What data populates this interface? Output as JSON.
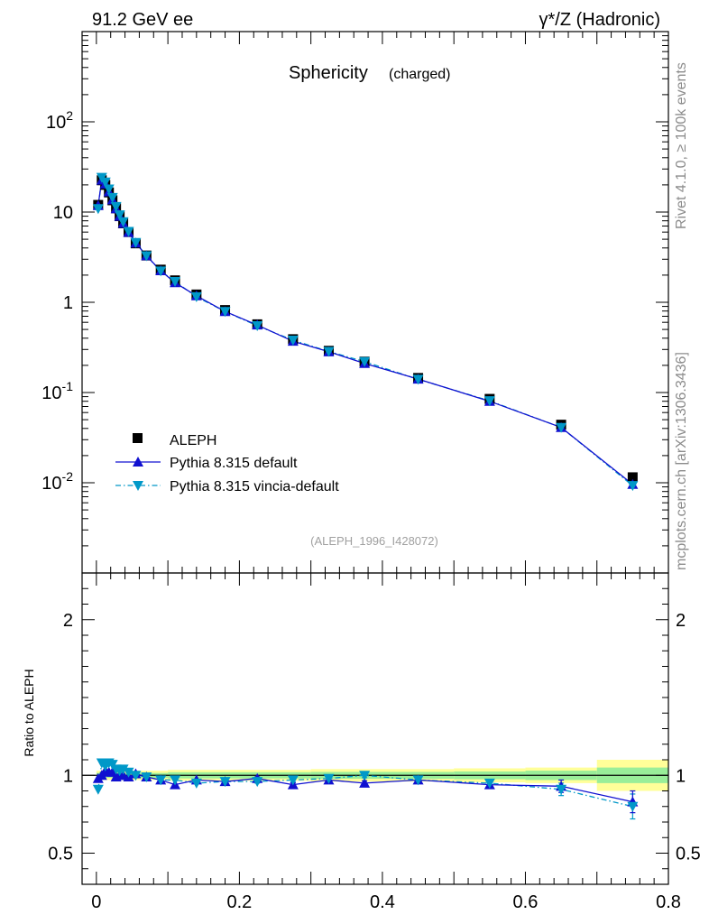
{
  "header": {
    "left": "91.2 GeV ee",
    "right": "γ*/Z (Hadronic)",
    "side_rivet": "Rivet 4.1.0, ≥ 100k events",
    "side_mcplots": "mcplots.cern.ch [arXiv:1306.3436]"
  },
  "colors": {
    "aleph": "#000000",
    "pythia_default": "#1010d0",
    "pythia_vincia": "#0098c8",
    "band_outer": "#ffff99",
    "band_inner": "#99ee99"
  },
  "chart_data": [
    {
      "type": "scatter",
      "title": "Sphericity",
      "subtitle": "(charged)",
      "reference_label": "(ALEPH_1996_I428072)",
      "xlabel": "",
      "ylabel": "",
      "yscale": "log",
      "xlim": [
        -0.02,
        0.8
      ],
      "ylim": [
        0.001,
        1000
      ],
      "y_tick_labels": [
        "10^-2",
        "10^-1",
        "1",
        "10",
        "10^2"
      ],
      "legend_position": "lower-left",
      "series": [
        {
          "name": "ALEPH",
          "marker": "square",
          "x": [
            0.0025,
            0.0075,
            0.0125,
            0.0175,
            0.0225,
            0.0275,
            0.0325,
            0.0375,
            0.045,
            0.055,
            0.07,
            0.09,
            0.11,
            0.14,
            0.18,
            0.225,
            0.275,
            0.325,
            0.375,
            0.45,
            0.55,
            0.65,
            0.75
          ],
          "y": [
            12.0,
            22.5,
            20.0,
            16.5,
            13.5,
            11.0,
            9.0,
            7.5,
            6.0,
            4.5,
            3.3,
            2.3,
            1.75,
            1.22,
            0.82,
            0.57,
            0.39,
            0.29,
            0.22,
            0.145,
            0.085,
            0.044,
            0.0115
          ]
        },
        {
          "name": "Pythia 8.315 default",
          "marker": "triangle-up",
          "line": "solid",
          "x": [
            0.0025,
            0.0075,
            0.0125,
            0.0175,
            0.0225,
            0.0275,
            0.0325,
            0.0375,
            0.045,
            0.055,
            0.07,
            0.09,
            0.11,
            0.14,
            0.18,
            0.225,
            0.275,
            0.325,
            0.375,
            0.45,
            0.55,
            0.65,
            0.75
          ],
          "y": [
            11.8,
            22.6,
            20.5,
            16.8,
            13.7,
            10.9,
            9.0,
            7.5,
            5.95,
            4.55,
            3.28,
            2.24,
            1.65,
            1.18,
            0.79,
            0.56,
            0.37,
            0.283,
            0.21,
            0.141,
            0.08,
            0.041,
            0.0096
          ]
        },
        {
          "name": "Pythia 8.315 vincia-default",
          "marker": "triangle-down",
          "line": "dash-dot",
          "x": [
            0.0025,
            0.0075,
            0.0125,
            0.0175,
            0.0225,
            0.0275,
            0.0325,
            0.0375,
            0.045,
            0.055,
            0.07,
            0.09,
            0.11,
            0.14,
            0.18,
            0.225,
            0.275,
            0.325,
            0.375,
            0.45,
            0.55,
            0.65,
            0.75
          ],
          "y": [
            10.9,
            24.2,
            21.5,
            18.0,
            14.5,
            11.5,
            9.3,
            7.8,
            6.1,
            4.6,
            3.27,
            2.22,
            1.7,
            1.15,
            0.79,
            0.55,
            0.38,
            0.285,
            0.22,
            0.14,
            0.081,
            0.041,
            0.0093
          ]
        }
      ]
    },
    {
      "type": "scatter",
      "title": "",
      "xlabel": "",
      "ylabel": "Ratio to ALEPH",
      "xlim": [
        -0.02,
        0.8
      ],
      "ylim": [
        0.3,
        2.3
      ],
      "x_tick_labels": [
        "0",
        "0.2",
        "0.4",
        "0.6",
        "0.8"
      ],
      "y_tick_labels": [
        "0.5",
        "1",
        "2"
      ],
      "bands": {
        "x_edges": [
          0,
          0.1,
          0.3,
          0.5,
          0.6,
          0.7,
          0.8
        ],
        "outer_half_width": [
          0.03,
          0.035,
          0.04,
          0.045,
          0.05,
          0.1
        ],
        "inner_half_width": [
          0.015,
          0.02,
          0.022,
          0.025,
          0.03,
          0.05
        ]
      },
      "series": [
        {
          "name": "Pythia 8.315 default",
          "x": [
            0.0025,
            0.0075,
            0.0125,
            0.0175,
            0.0225,
            0.0275,
            0.0325,
            0.0375,
            0.045,
            0.055,
            0.07,
            0.09,
            0.11,
            0.14,
            0.18,
            0.225,
            0.275,
            0.325,
            0.375,
            0.45,
            0.55,
            0.65,
            0.75
          ],
          "y": [
            0.98,
            1.0,
            1.03,
            1.02,
            1.02,
            0.99,
            1.0,
            1.0,
            0.99,
            1.01,
            0.99,
            0.97,
            0.94,
            0.97,
            0.96,
            0.98,
            0.94,
            0.97,
            0.95,
            0.97,
            0.94,
            0.93,
            0.83
          ],
          "yerr": [
            0.005,
            0.005,
            0.005,
            0.005,
            0.005,
            0.005,
            0.005,
            0.005,
            0.005,
            0.005,
            0.005,
            0.006,
            0.007,
            0.008,
            0.009,
            0.01,
            0.012,
            0.013,
            0.015,
            0.018,
            0.02,
            0.04,
            0.07
          ]
        },
        {
          "name": "Pythia 8.315 vincia-default",
          "x": [
            0.0025,
            0.0075,
            0.0125,
            0.0175,
            0.0225,
            0.0275,
            0.0325,
            0.0375,
            0.045,
            0.055,
            0.07,
            0.09,
            0.11,
            0.14,
            0.18,
            0.225,
            0.275,
            0.325,
            0.375,
            0.45,
            0.55,
            0.65,
            0.75
          ],
          "y": [
            0.91,
            1.08,
            1.06,
            1.08,
            1.07,
            1.04,
            1.03,
            1.04,
            1.02,
            1.0,
            0.99,
            0.97,
            0.97,
            0.95,
            0.96,
            0.96,
            0.97,
            0.98,
            1.0,
            0.97,
            0.95,
            0.91,
            0.8
          ],
          "yerr": [
            0.005,
            0.005,
            0.005,
            0.005,
            0.005,
            0.005,
            0.005,
            0.005,
            0.005,
            0.005,
            0.005,
            0.006,
            0.007,
            0.008,
            0.009,
            0.01,
            0.012,
            0.013,
            0.015,
            0.018,
            0.02,
            0.04,
            0.08
          ]
        }
      ]
    }
  ]
}
